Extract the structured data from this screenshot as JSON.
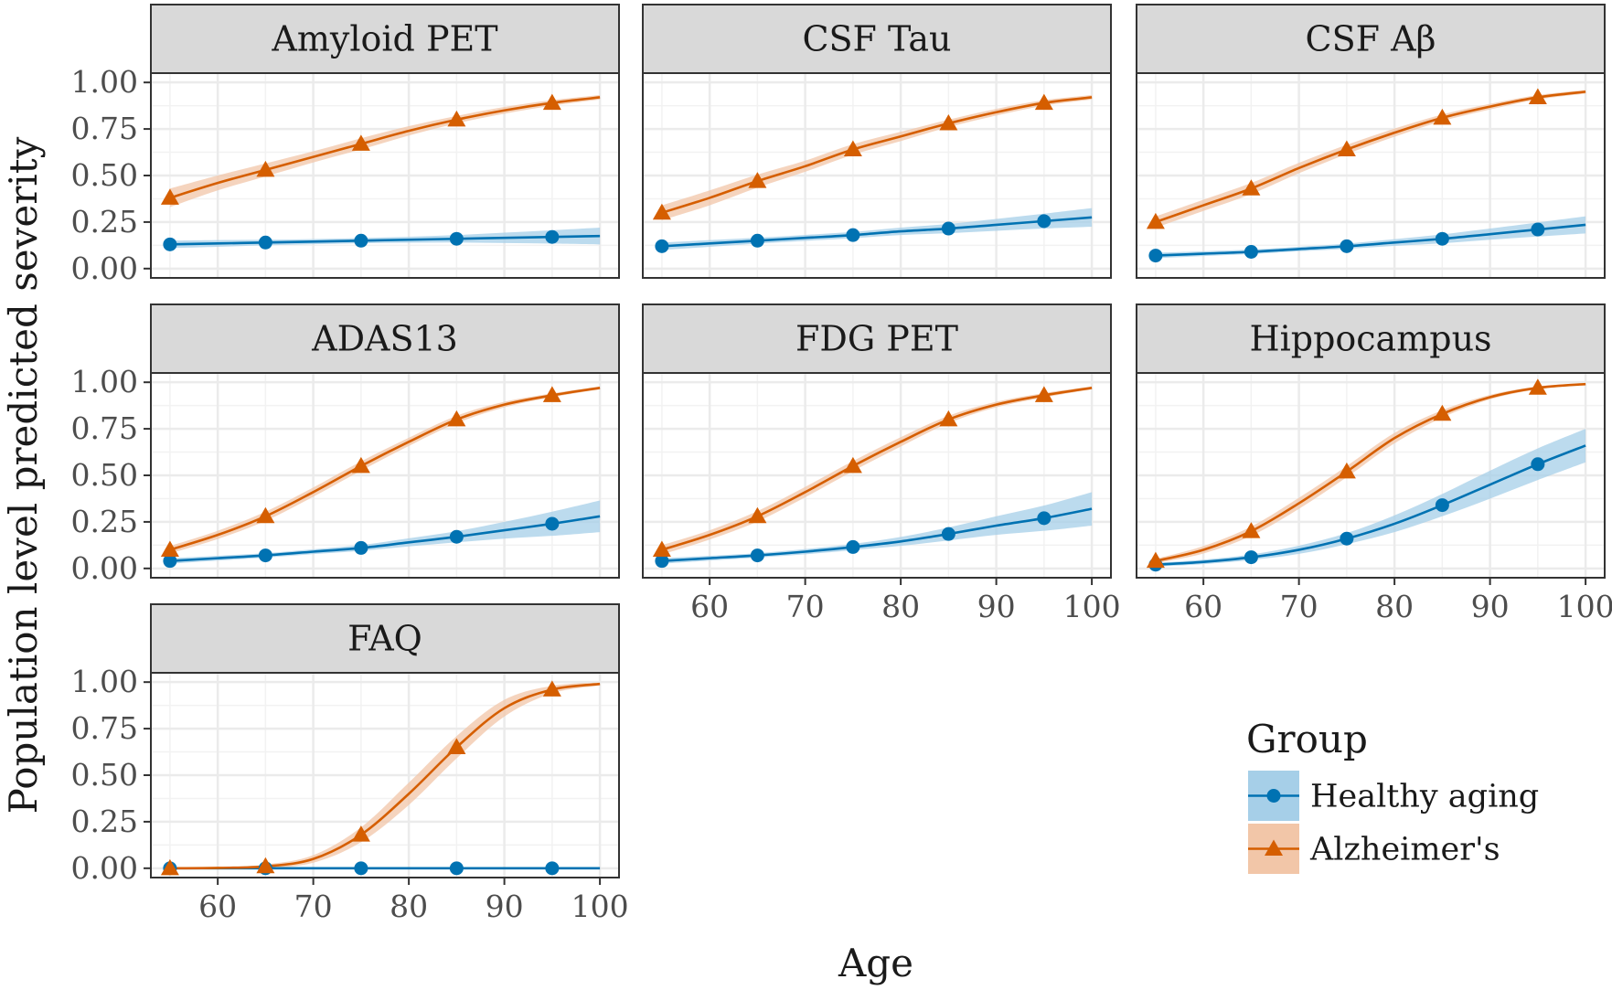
{
  "chart_data": {
    "type": "line",
    "xlabel": "Age",
    "ylabel": "Population level predicted severity",
    "xlim": [
      53,
      102
    ],
    "ylim": [
      -0.05,
      1.05
    ],
    "x_ticks": [
      60,
      70,
      80,
      90,
      100
    ],
    "y_ticks": [
      0,
      0.25,
      0.5,
      0.75,
      1
    ],
    "x_tick_labels": [
      "60",
      "70",
      "80",
      "90",
      "100"
    ],
    "y_tick_labels": [
      "0.00",
      "0.25",
      "0.50",
      "0.75",
      "1.00"
    ],
    "legend": {
      "title": "Group",
      "position": "bottom-right",
      "entries": [
        "Healthy aging",
        "Alzheimer's"
      ]
    },
    "series_styles": [
      {
        "name": "Healthy aging",
        "color": "#0072B2",
        "ribbon": "#a6cfe8",
        "marker": "circle"
      },
      {
        "name": "Alzheimer's",
        "color": "#D55E00",
        "ribbon": "#f2c6a8",
        "marker": "triangle"
      }
    ],
    "marker_ages": [
      55,
      65,
      75,
      85,
      95
    ],
    "panels": [
      {
        "title": "Amyloid PET",
        "x": [
          55,
          60,
          65,
          70,
          75,
          80,
          85,
          90,
          95,
          100
        ],
        "series": [
          {
            "name": "Healthy aging",
            "values": [
              0.13,
              0.135,
              0.14,
              0.145,
              0.15,
              0.155,
              0.16,
              0.165,
              0.17,
              0.175
            ],
            "ci": [
              0.02,
              0.018,
              0.015,
              0.014,
              0.014,
              0.016,
              0.02,
              0.028,
              0.036,
              0.045
            ]
          },
          {
            "name": "Alzheimer's",
            "values": [
              0.38,
              0.46,
              0.53,
              0.6,
              0.67,
              0.74,
              0.8,
              0.85,
              0.89,
              0.92
            ],
            "ci": [
              0.05,
              0.04,
              0.035,
              0.03,
              0.03,
              0.025,
              0.02,
              0.018,
              0.015,
              0.012
            ]
          }
        ]
      },
      {
        "title": "CSF Tau",
        "x": [
          55,
          60,
          65,
          70,
          75,
          80,
          85,
          90,
          95,
          100
        ],
        "series": [
          {
            "name": "Healthy aging",
            "values": [
              0.12,
              0.135,
              0.15,
              0.165,
              0.18,
              0.2,
              0.215,
              0.235,
              0.255,
              0.275
            ],
            "ci": [
              0.02,
              0.018,
              0.016,
              0.016,
              0.017,
              0.02,
              0.025,
              0.032,
              0.04,
              0.05
            ]
          },
          {
            "name": "Alzheimer's",
            "values": [
              0.3,
              0.38,
              0.47,
              0.55,
              0.64,
              0.71,
              0.78,
              0.84,
              0.89,
              0.92
            ],
            "ci": [
              0.04,
              0.04,
              0.035,
              0.03,
              0.028,
              0.025,
              0.02,
              0.018,
              0.015,
              0.012
            ]
          }
        ]
      },
      {
        "title": "CSF Aβ",
        "x": [
          55,
          60,
          65,
          70,
          75,
          80,
          85,
          90,
          95,
          100
        ],
        "series": [
          {
            "name": "Healthy aging",
            "values": [
              0.07,
              0.08,
              0.09,
              0.105,
              0.12,
              0.14,
              0.16,
              0.185,
              0.21,
              0.235
            ],
            "ci": [
              0.015,
              0.013,
              0.012,
              0.012,
              0.014,
              0.018,
              0.024,
              0.03,
              0.038,
              0.046
            ]
          },
          {
            "name": "Alzheimer's",
            "values": [
              0.25,
              0.34,
              0.43,
              0.54,
              0.64,
              0.73,
              0.81,
              0.87,
              0.92,
              0.95
            ],
            "ci": [
              0.03,
              0.03,
              0.03,
              0.028,
              0.025,
              0.022,
              0.018,
              0.015,
              0.012,
              0.01
            ]
          }
        ]
      },
      {
        "title": "ADAS13",
        "x": [
          55,
          60,
          65,
          70,
          75,
          80,
          85,
          90,
          95,
          100
        ],
        "series": [
          {
            "name": "Healthy aging",
            "values": [
              0.04,
              0.055,
              0.07,
              0.09,
              0.11,
              0.14,
              0.17,
              0.205,
              0.24,
              0.28
            ],
            "ci": [
              0.015,
              0.013,
              0.012,
              0.013,
              0.016,
              0.022,
              0.03,
              0.045,
              0.065,
              0.085
            ]
          },
          {
            "name": "Alzheimer's",
            "values": [
              0.1,
              0.18,
              0.28,
              0.41,
              0.55,
              0.68,
              0.8,
              0.88,
              0.93,
              0.97
            ],
            "ci": [
              0.02,
              0.022,
              0.025,
              0.025,
              0.025,
              0.022,
              0.02,
              0.015,
              0.01,
              0.008
            ]
          }
        ]
      },
      {
        "title": "FDG PET",
        "x": [
          55,
          60,
          65,
          70,
          75,
          80,
          85,
          90,
          95,
          100
        ],
        "series": [
          {
            "name": "Healthy aging",
            "values": [
              0.04,
              0.055,
              0.07,
              0.09,
              0.115,
              0.145,
              0.185,
              0.23,
              0.27,
              0.32
            ],
            "ci": [
              0.015,
              0.013,
              0.012,
              0.014,
              0.017,
              0.024,
              0.035,
              0.05,
              0.068,
              0.09
            ]
          },
          {
            "name": "Alzheimer's",
            "values": [
              0.1,
              0.18,
              0.28,
              0.41,
              0.55,
              0.68,
              0.8,
              0.88,
              0.93,
              0.97
            ],
            "ci": [
              0.025,
              0.025,
              0.028,
              0.028,
              0.027,
              0.025,
              0.02,
              0.015,
              0.012,
              0.008
            ]
          }
        ]
      },
      {
        "title": "Hippocampus",
        "x": [
          55,
          60,
          65,
          70,
          75,
          80,
          85,
          90,
          95,
          100
        ],
        "series": [
          {
            "name": "Healthy aging",
            "values": [
              0.02,
              0.035,
              0.06,
              0.1,
              0.16,
              0.24,
              0.34,
              0.45,
              0.56,
              0.66
            ],
            "ci": [
              0.01,
              0.012,
              0.015,
              0.022,
              0.03,
              0.045,
              0.06,
              0.075,
              0.085,
              0.09
            ]
          },
          {
            "name": "Alzheimer's",
            "values": [
              0.04,
              0.1,
              0.2,
              0.35,
              0.52,
              0.7,
              0.83,
              0.92,
              0.97,
              0.99
            ],
            "ci": [
              0.012,
              0.02,
              0.025,
              0.03,
              0.03,
              0.028,
              0.02,
              0.012,
              0.008,
              0.004
            ]
          }
        ]
      },
      {
        "title": "FAQ",
        "x": [
          55,
          60,
          65,
          70,
          75,
          80,
          85,
          90,
          95,
          100
        ],
        "series": [
          {
            "name": "Healthy aging",
            "values": [
              0.0,
              0.0,
              0.0,
              0.0,
              0.0,
              0.0,
              0.0,
              0.0,
              0.0,
              0.0
            ],
            "ci": [
              0.004,
              0.004,
              0.004,
              0.004,
              0.004,
              0.004,
              0.004,
              0.004,
              0.004,
              0.004
            ]
          },
          {
            "name": "Alzheimer's",
            "values": [
              0.0,
              0.002,
              0.01,
              0.05,
              0.18,
              0.4,
              0.65,
              0.86,
              0.96,
              0.99
            ],
            "ci": [
              0.002,
              0.003,
              0.01,
              0.02,
              0.04,
              0.06,
              0.06,
              0.045,
              0.02,
              0.008
            ]
          }
        ]
      }
    ]
  }
}
